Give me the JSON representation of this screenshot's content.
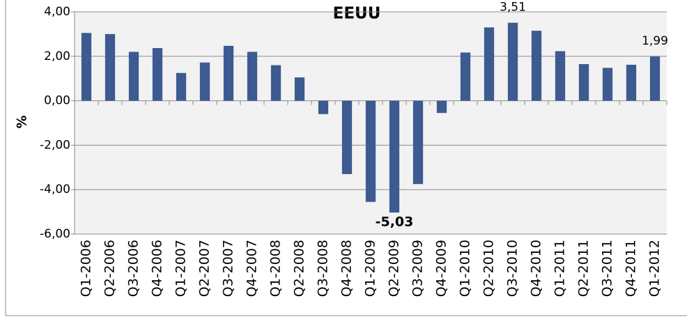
{
  "chart_data": {
    "type": "bar",
    "title": "EEUU",
    "y_label": "%",
    "categories": [
      "Q1-2006",
      "Q2-2006",
      "Q3-2006",
      "Q4-2006",
      "Q1-2007",
      "Q2-2007",
      "Q3-2007",
      "Q4-2007",
      "Q1-2008",
      "Q2-2008",
      "Q3-2008",
      "Q4-2008",
      "Q1-2009",
      "Q2-2009",
      "Q3-2009",
      "Q4-2009",
      "Q1-2010",
      "Q2-2010",
      "Q3-2010",
      "Q4-2010",
      "Q1-2011",
      "Q2-2011",
      "Q3-2011",
      "Q4-2011",
      "Q1-2012"
    ],
    "values": [
      3.05,
      3.0,
      2.2,
      2.37,
      1.25,
      1.72,
      2.47,
      2.2,
      1.6,
      1.05,
      -0.6,
      -3.3,
      -4.55,
      -5.03,
      -3.75,
      -0.55,
      2.17,
      3.3,
      3.51,
      3.15,
      2.23,
      1.65,
      1.48,
      1.62,
      1.99
    ],
    "value_labels": [
      null,
      null,
      null,
      null,
      null,
      null,
      null,
      null,
      null,
      null,
      null,
      null,
      null,
      "-5,03",
      null,
      null,
      null,
      null,
      "3,51",
      null,
      null,
      null,
      null,
      null,
      "1,99"
    ],
    "color": "#3d5a91",
    "ylim": [
      -6,
      4
    ],
    "yticks": [
      {
        "value": -6,
        "label": "-6,00"
      },
      {
        "value": -4,
        "label": "-4,00"
      },
      {
        "value": -2,
        "label": "-2,00"
      },
      {
        "value": 0,
        "label": "0,00"
      },
      {
        "value": 2,
        "label": "2,00"
      },
      {
        "value": 4,
        "label": "4,00"
      }
    ],
    "grid": true
  }
}
